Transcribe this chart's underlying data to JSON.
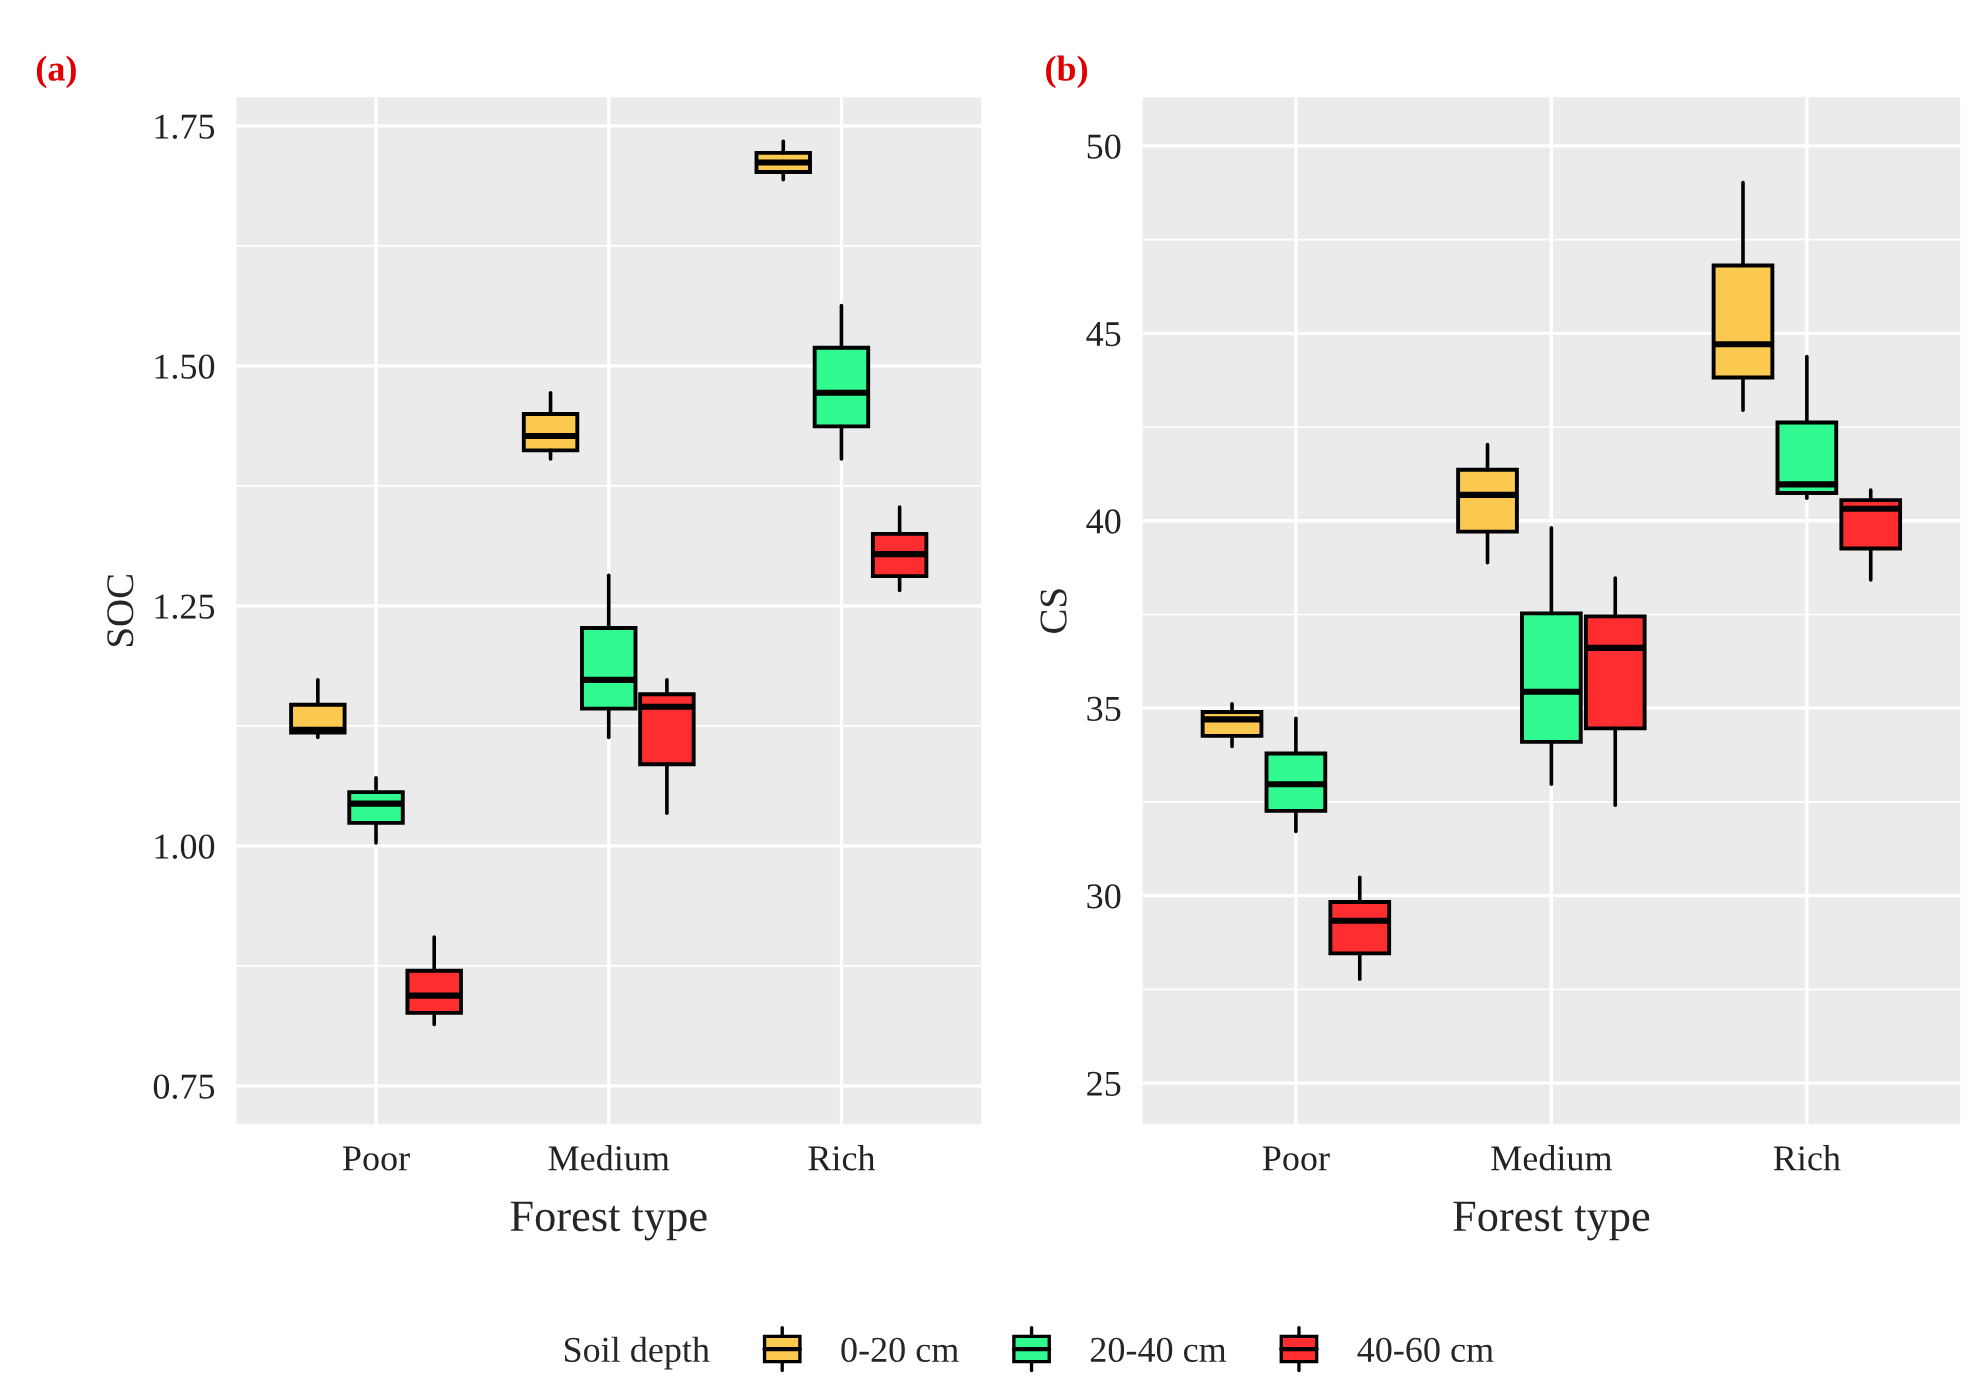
{
  "chart_data": [
    {
      "type": "box",
      "title": "(a)",
      "xlabel": "Forest type",
      "ylabel": "SOC",
      "categories": [
        "Poor",
        "Medium",
        "Rich"
      ],
      "ylim": [
        0.71,
        1.78
      ],
      "yticks": [
        {
          "value": 0.75,
          "label": "0.75"
        },
        {
          "value": 1.0,
          "label": "1.00"
        },
        {
          "value": 1.25,
          "label": "1.25"
        },
        {
          "value": 1.5,
          "label": "1.50"
        },
        {
          "value": 1.75,
          "label": "1.75"
        }
      ],
      "grid": true,
      "legend": "bottom",
      "legend_title": "Soil depth",
      "series": [
        {
          "name": "0-20 cm",
          "color": "#fbc94f",
          "boxes": [
            {
              "low": 1.113,
              "q1": 1.118,
              "median": 1.121,
              "q3": 1.147,
              "high": 1.173
            },
            {
              "low": 1.403,
              "q1": 1.412,
              "median": 1.427,
              "q3": 1.45,
              "high": 1.472
            },
            {
              "low": 1.694,
              "q1": 1.702,
              "median": 1.712,
              "q3": 1.722,
              "high": 1.734
            }
          ]
        },
        {
          "name": "20-40 cm",
          "color": "#2ff98f",
          "boxes": [
            {
              "low": 1.003,
              "q1": 1.024,
              "median": 1.044,
              "q3": 1.056,
              "high": 1.071
            },
            {
              "low": 1.113,
              "q1": 1.143,
              "median": 1.173,
              "q3": 1.227,
              "high": 1.282
            },
            {
              "low": 1.403,
              "q1": 1.437,
              "median": 1.472,
              "q3": 1.519,
              "high": 1.563
            }
          ]
        },
        {
          "name": "40-60 cm",
          "color": "#fd2d30",
          "boxes": [
            {
              "low": 0.814,
              "q1": 0.826,
              "median": 0.844,
              "q3": 0.87,
              "high": 0.905
            },
            {
              "low": 1.034,
              "q1": 1.085,
              "median": 1.145,
              "q3": 1.158,
              "high": 1.173
            },
            {
              "low": 1.266,
              "q1": 1.281,
              "median": 1.304,
              "q3": 1.325,
              "high": 1.353
            }
          ]
        }
      ]
    },
    {
      "type": "box",
      "title": "(b)",
      "xlabel": "Forest type",
      "ylabel": "CS",
      "categories": [
        "Poor",
        "Medium",
        "Rich"
      ],
      "ylim": [
        23.9,
        51.3
      ],
      "yticks": [
        25,
        30,
        35,
        40,
        45,
        50
      ],
      "grid": true,
      "series": [
        {
          "color": "#fbc94f",
          "boxes": [
            {
              "low": 33.98,
              "q1": 34.26,
              "median": 34.7,
              "q3": 34.9,
              "high": 35.12
            },
            {
              "low": 38.88,
              "q1": 39.71,
              "median": 40.69,
              "q3": 41.36,
              "high": 42.03
            },
            {
              "low": 42.95,
              "q1": 43.82,
              "median": 44.71,
              "q3": 46.81,
              "high": 49.02
            }
          ]
        },
        {
          "color": "#2ff98f",
          "boxes": [
            {
              "low": 31.71,
              "q1": 32.26,
              "median": 32.97,
              "q3": 33.79,
              "high": 34.73
            },
            {
              "low": 32.97,
              "q1": 34.1,
              "median": 35.44,
              "q3": 37.53,
              "high": 39.81
            },
            {
              "low": 40.6,
              "q1": 40.74,
              "median": 40.97,
              "q3": 42.62,
              "high": 44.38
            }
          ]
        },
        {
          "color": "#fd2d30",
          "boxes": [
            {
              "low": 27.77,
              "q1": 28.46,
              "median": 29.33,
              "q3": 29.83,
              "high": 30.49
            },
            {
              "low": 32.41,
              "q1": 34.46,
              "median": 36.61,
              "q3": 37.45,
              "high": 38.47
            },
            {
              "low": 38.42,
              "q1": 39.26,
              "median": 40.32,
              "q3": 40.55,
              "high": 40.82
            }
          ]
        }
      ]
    }
  ]
}
